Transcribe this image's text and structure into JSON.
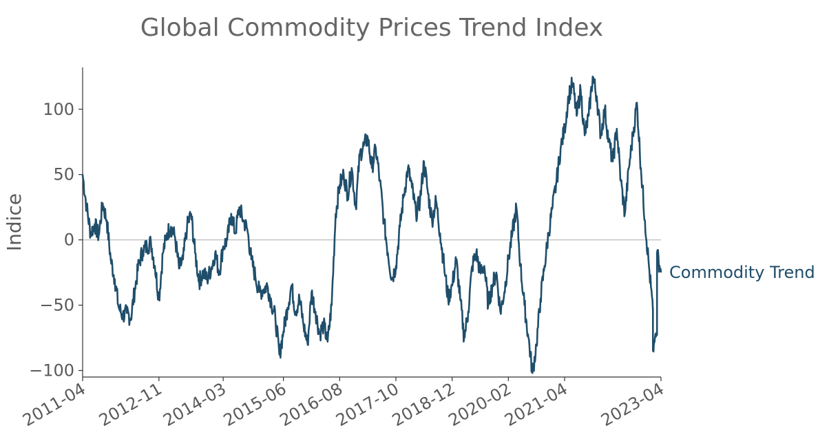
{
  "chart_data": {
    "type": "line",
    "title": "Global Commodity Prices Trend Index",
    "xlabel": "",
    "ylabel": "Indice",
    "x_start": "2011-04",
    "x_end": "2023-04",
    "x_ticks": [
      "2011-04",
      "2012-11",
      "2014-03",
      "2015-06",
      "2016-08",
      "2017-10",
      "2018-12",
      "2020-02",
      "2021-04",
      "2023-04"
    ],
    "y_ticks": [
      -100,
      -50,
      0,
      50,
      100
    ],
    "ylim": [
      -105,
      132
    ],
    "reference_line": 0,
    "grid": false,
    "series": [
      {
        "name": "Commodity Trend",
        "color": "#1f4e6b",
        "points": [
          [
            "2011-04",
            50
          ],
          [
            "2011-05",
            25
          ],
          [
            "2011-06",
            5
          ],
          [
            "2011-07",
            12
          ],
          [
            "2011-08",
            3
          ],
          [
            "2011-09",
            28
          ],
          [
            "2011-10",
            15
          ],
          [
            "2011-11",
            -15
          ],
          [
            "2011-12",
            -30
          ],
          [
            "2012-01",
            -52
          ],
          [
            "2012-02",
            -58
          ],
          [
            "2012-03",
            -56
          ],
          [
            "2012-04",
            -60
          ],
          [
            "2012-05",
            -38
          ],
          [
            "2012-06",
            -18
          ],
          [
            "2012-07",
            -8
          ],
          [
            "2012-08",
            -5
          ],
          [
            "2012-09",
            -2
          ],
          [
            "2012-10",
            -20
          ],
          [
            "2012-11",
            -45
          ],
          [
            "2012-12",
            -10
          ],
          [
            "2013-01",
            5
          ],
          [
            "2013-02",
            10
          ],
          [
            "2013-03",
            2
          ],
          [
            "2013-04",
            -22
          ],
          [
            "2013-05",
            -15
          ],
          [
            "2013-06",
            10
          ],
          [
            "2013-07",
            20
          ],
          [
            "2013-08",
            -10
          ],
          [
            "2013-09",
            -32
          ],
          [
            "2013-10",
            -25
          ],
          [
            "2013-11",
            -30
          ],
          [
            "2013-12",
            -22
          ],
          [
            "2014-01",
            -10
          ],
          [
            "2014-02",
            -25
          ],
          [
            "2014-03",
            -5
          ],
          [
            "2014-04",
            0
          ],
          [
            "2014-05",
            20
          ],
          [
            "2014-06",
            5
          ],
          [
            "2014-07",
            25
          ],
          [
            "2014-08",
            15
          ],
          [
            "2014-09",
            8
          ],
          [
            "2014-10",
            -15
          ],
          [
            "2014-11",
            -28
          ],
          [
            "2014-12",
            -40
          ],
          [
            "2015-01",
            -38
          ],
          [
            "2015-02",
            -35
          ],
          [
            "2015-03",
            -48
          ],
          [
            "2015-04",
            -60
          ],
          [
            "2015-05",
            -88
          ],
          [
            "2015-06",
            -70
          ],
          [
            "2015-07",
            -52
          ],
          [
            "2015-08",
            -35
          ],
          [
            "2015-09",
            -55
          ],
          [
            "2015-10",
            -45
          ],
          [
            "2015-11",
            -65
          ],
          [
            "2015-12",
            -80
          ],
          [
            "2016-01",
            -40
          ],
          [
            "2016-02",
            -55
          ],
          [
            "2016-03",
            -72
          ],
          [
            "2016-04",
            -65
          ],
          [
            "2016-05",
            -78
          ],
          [
            "2016-06",
            -50
          ],
          [
            "2016-07",
            20
          ],
          [
            "2016-08",
            42
          ],
          [
            "2016-09",
            50
          ],
          [
            "2016-10",
            35
          ],
          [
            "2016-11",
            55
          ],
          [
            "2016-12",
            25
          ],
          [
            "2017-01",
            65
          ],
          [
            "2017-02",
            72
          ],
          [
            "2017-03",
            78
          ],
          [
            "2017-04",
            55
          ],
          [
            "2017-05",
            70
          ],
          [
            "2017-06",
            45
          ],
          [
            "2017-07",
            15
          ],
          [
            "2017-08",
            -10
          ],
          [
            "2017-09",
            -30
          ],
          [
            "2017-10",
            -20
          ],
          [
            "2017-11",
            10
          ],
          [
            "2017-12",
            35
          ],
          [
            "2018-01",
            55
          ],
          [
            "2018-02",
            40
          ],
          [
            "2018-03",
            20
          ],
          [
            "2018-04",
            30
          ],
          [
            "2018-05",
            60
          ],
          [
            "2018-06",
            35
          ],
          [
            "2018-07",
            15
          ],
          [
            "2018-08",
            30
          ],
          [
            "2018-09",
            5
          ],
          [
            "2018-10",
            -20
          ],
          [
            "2018-11",
            -45
          ],
          [
            "2018-12",
            -35
          ],
          [
            "2019-01",
            -15
          ],
          [
            "2019-02",
            -45
          ],
          [
            "2019-03",
            -75
          ],
          [
            "2019-04",
            -55
          ],
          [
            "2019-05",
            -20
          ],
          [
            "2019-06",
            -10
          ],
          [
            "2019-07",
            -25
          ],
          [
            "2019-08",
            -20
          ],
          [
            "2019-09",
            -50
          ],
          [
            "2019-10",
            -35
          ],
          [
            "2019-11",
            -25
          ],
          [
            "2019-12",
            -55
          ],
          [
            "2020-01",
            -40
          ],
          [
            "2020-02",
            -15
          ],
          [
            "2020-03",
            5
          ],
          [
            "2020-04",
            25
          ],
          [
            "2020-05",
            -20
          ],
          [
            "2020-06",
            -50
          ],
          [
            "2020-07",
            -75
          ],
          [
            "2020-08",
            -102
          ],
          [
            "2020-09",
            -80
          ],
          [
            "2020-10",
            -45
          ],
          [
            "2020-11",
            -20
          ],
          [
            "2020-12",
            5
          ],
          [
            "2021-01",
            25
          ],
          [
            "2021-02",
            45
          ],
          [
            "2021-03",
            70
          ],
          [
            "2021-04",
            85
          ],
          [
            "2021-05",
            110
          ],
          [
            "2021-06",
            120
          ],
          [
            "2021-07",
            95
          ],
          [
            "2021-08",
            115
          ],
          [
            "2021-09",
            80
          ],
          [
            "2021-10",
            95
          ],
          [
            "2021-11",
            125
          ],
          [
            "2021-12",
            110
          ],
          [
            "2022-01",
            80
          ],
          [
            "2022-02",
            100
          ],
          [
            "2022-03",
            75
          ],
          [
            "2022-04",
            60
          ],
          [
            "2022-05",
            85
          ],
          [
            "2022-06",
            45
          ],
          [
            "2022-07",
            20
          ],
          [
            "2022-08",
            55
          ],
          [
            "2022-09",
            80
          ],
          [
            "2022-10",
            105
          ],
          [
            "2022-11",
            55
          ],
          [
            "2022-12",
            15
          ],
          [
            "2023-01",
            -20
          ],
          [
            "2023-02",
            -55
          ],
          [
            "2023-02",
            -85
          ],
          [
            "2023-03",
            -70
          ],
          [
            "2023-03",
            -45
          ],
          [
            "2023-03",
            -10
          ],
          [
            "2023-04",
            -25
          ]
        ]
      }
    ]
  }
}
